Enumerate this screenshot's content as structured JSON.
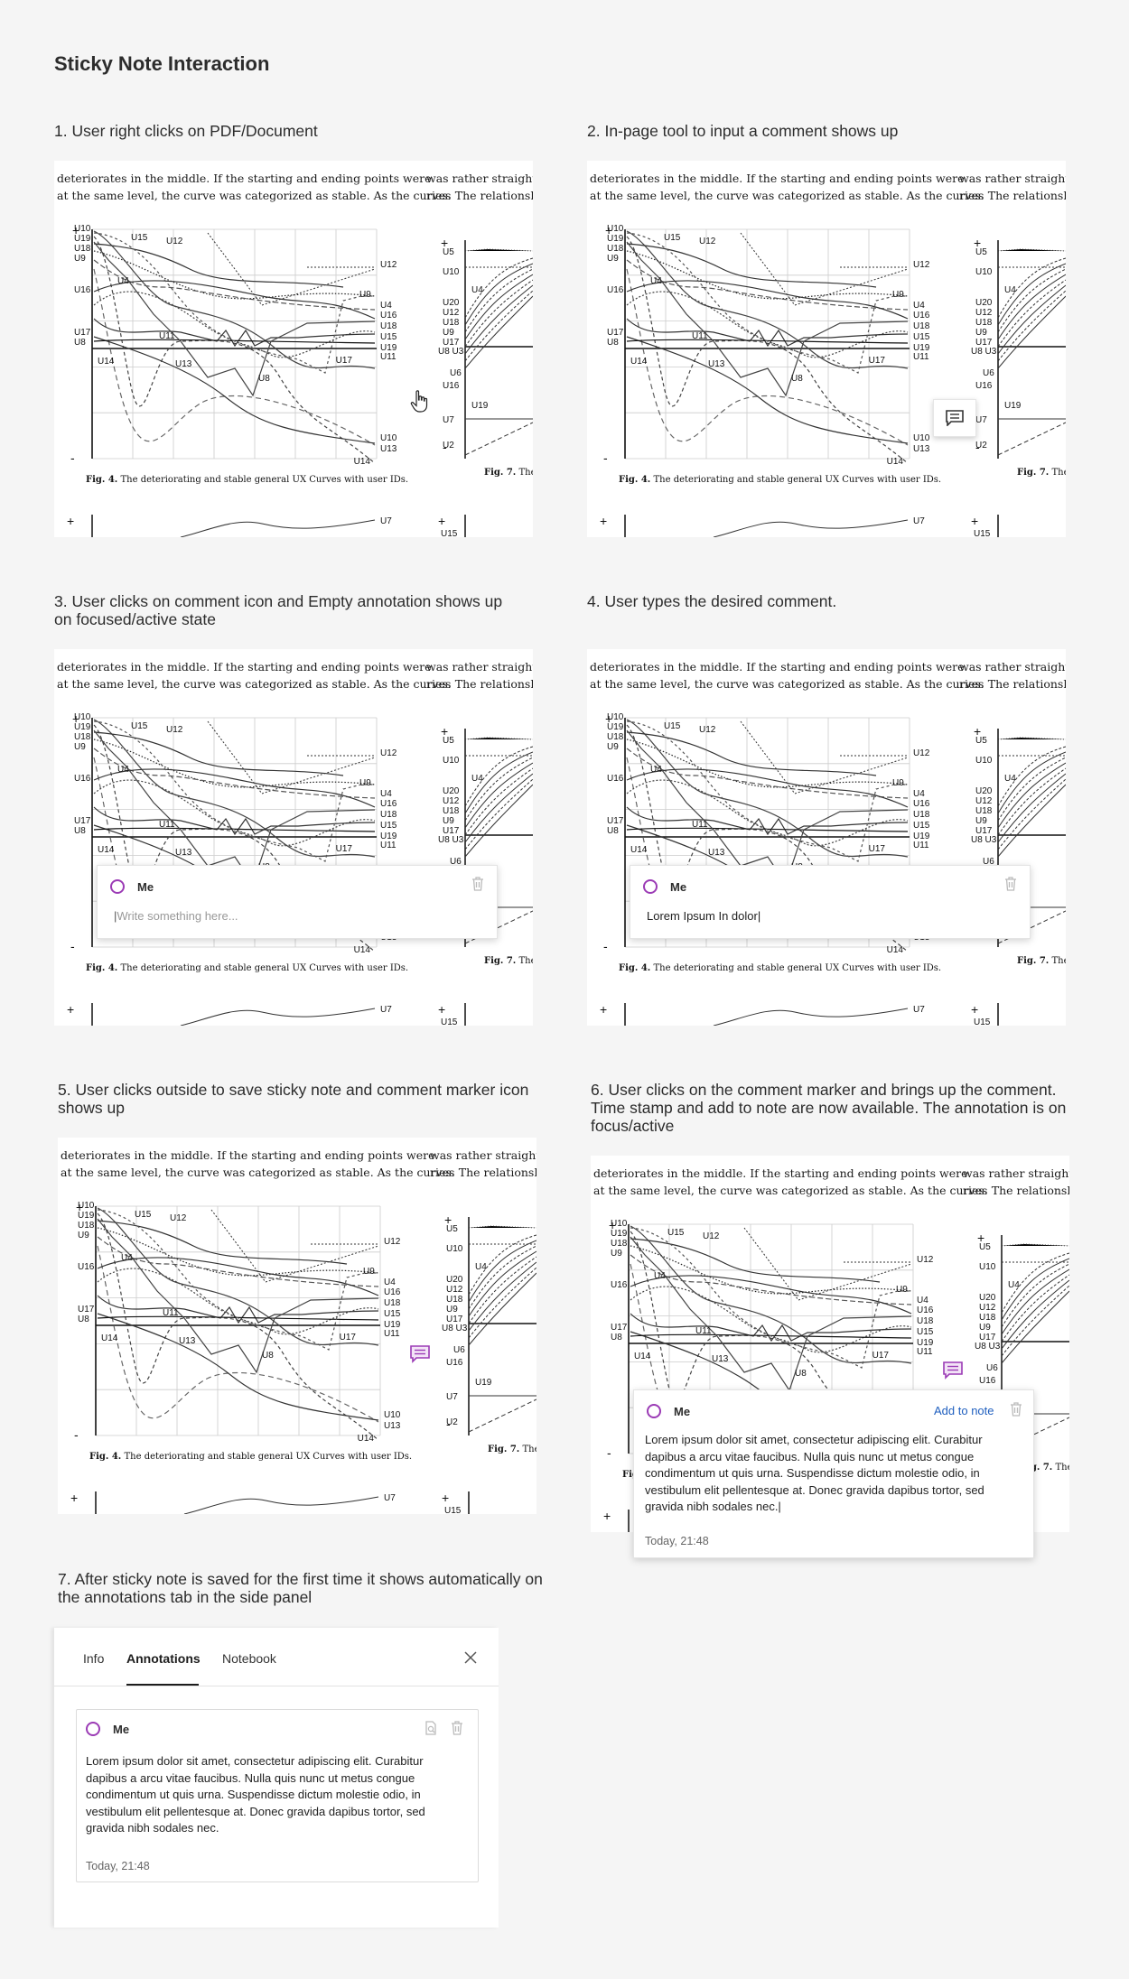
{
  "page_title": "Sticky Note Interaction",
  "steps": [
    {
      "caption": "1. User right clicks on PDF/Document"
    },
    {
      "caption": "2. In-page tool to input a comment shows up"
    },
    {
      "caption": "3. User clicks on comment icon and Empty annotation shows up on focused/active state"
    },
    {
      "caption": "4. User types the desired comment."
    },
    {
      "caption": "5. User clicks outside to save sticky note and comment marker icon shows up"
    },
    {
      "caption": "6. User clicks on the comment marker and brings up the comment. Time stamp and add to note are now available. The annotation is on focus/active"
    },
    {
      "caption": "7. After sticky note is saved for the first time it shows automatically on the annotations tab in the side panel"
    }
  ],
  "document": {
    "text_line_1": "deteriorates in the middle. If the starting and ending points were",
    "text_line_2": "at the same level, the curve was categorized as stable. As the curves",
    "right_line_1": "was rather straight-f",
    "right_line_2": "ries.  The  relationsh",
    "fig4_label": "Fig. 4.",
    "fig4_caption": "The deteriorating and stable general UX Curves with user IDs.",
    "fig7_label": "Fig. 7.",
    "fig7_caption": "The"
  },
  "notes": {
    "author": "Me",
    "placeholder": "Write something here...",
    "typed_text": "Lorem Ipsum In dolor|",
    "full_text": "Lorem ipsum dolor sit amet, consectetur adipiscing elit. Curabitur dapibus a arcu vitae faucibus. Nulla quis nunc ut metus congue condimentum ut quis urna. Suspendisse dictum molestie odio, in vestibulum elit pellentesque at. Donec gravida dapibus tortor, sed gravida nibh sodales nec.|",
    "timestamp": "Today, 21:48",
    "add_to_note": "Add to note"
  },
  "side_panel": {
    "tabs": [
      "Info",
      "Annotations",
      "Notebook"
    ],
    "active_tab": "Annotations",
    "card_author": "Me",
    "card_text": "Lorem ipsum dolor sit amet, consectetur adipiscing elit. Curabitur dapibus a arcu vitae faucibus. Nulla quis nunc ut metus congue condimentum ut quis urna. Suspendisse dictum molestie odio, in vestibulum elit pellentesque at. Donec gravida dapibus tortor, sed gravida nibh sodales nec.",
    "card_timestamp": "Today, 21:48"
  },
  "colors": {
    "accent": "#9b3bb5",
    "link": "#1f5fbf",
    "background": "#f5f5f5"
  }
}
